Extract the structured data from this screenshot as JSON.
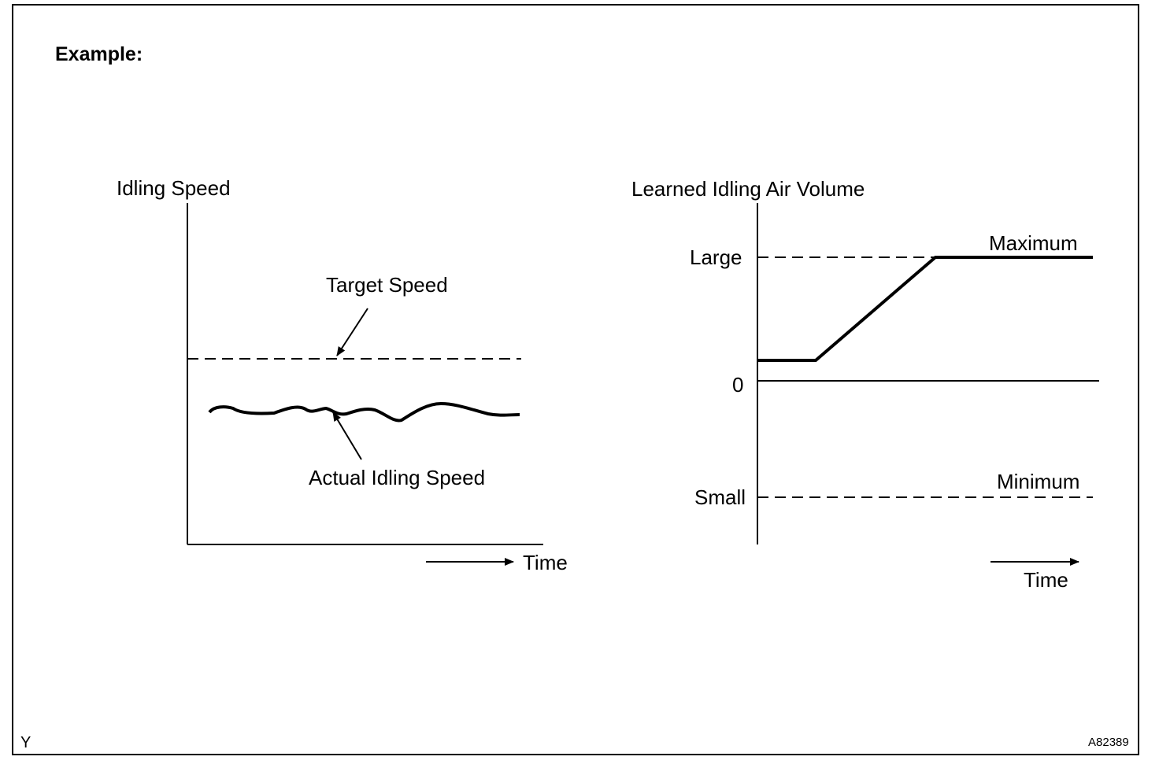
{
  "figure": {
    "title": "Example:",
    "figure_code": "A82389",
    "corner_mark": "Y"
  },
  "left_graph": {
    "y_axis_label": "Idling Speed",
    "x_axis_label": "Time",
    "target_label": "Target Speed",
    "actual_label": "Actual Idling Speed"
  },
  "right_graph": {
    "y_axis_label": "Learned Idling Air Volume",
    "x_axis_label": "Time",
    "large_label": "Large",
    "zero_label": "0",
    "small_label": "Small",
    "maximum_label": "Maximum",
    "minimum_label": "Minimum"
  },
  "colors": {
    "line": "#000000",
    "background": "#ffffff"
  }
}
